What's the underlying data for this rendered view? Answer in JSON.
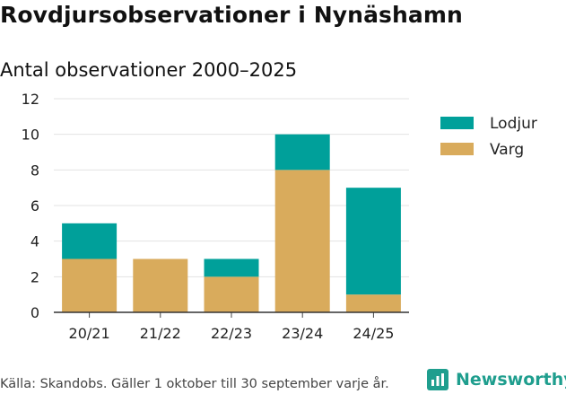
{
  "header": {
    "title": "Rovdjursobservationer i Nynäshamn",
    "subtitle": "Antal observationer 2000–2025"
  },
  "footer": {
    "source": "Källa: Skandobs. Gäller 1 oktober till 30 september varje år.",
    "brand": "Newsworthy"
  },
  "colors": {
    "Lodjur": "#00a09a",
    "Varg": "#d9ab5c",
    "brand": "#1f9e8e"
  },
  "chart_data": {
    "type": "bar",
    "stacked": true,
    "title": "Antal observationer 2000–2025",
    "xlabel": "",
    "ylabel": "",
    "categories": [
      "20/21",
      "21/22",
      "22/23",
      "23/24",
      "24/25"
    ],
    "series": [
      {
        "name": "Varg",
        "values": [
          3,
          3,
          2,
          8,
          1
        ]
      },
      {
        "name": "Lodjur",
        "values": [
          2,
          0,
          1,
          2,
          6
        ]
      }
    ],
    "ylim": [
      0,
      12
    ],
    "yticks": [
      0,
      2,
      4,
      6,
      8,
      10,
      12
    ],
    "grid": true,
    "legend": {
      "placement": "right",
      "entries": [
        "Lodjur",
        "Varg"
      ]
    }
  }
}
